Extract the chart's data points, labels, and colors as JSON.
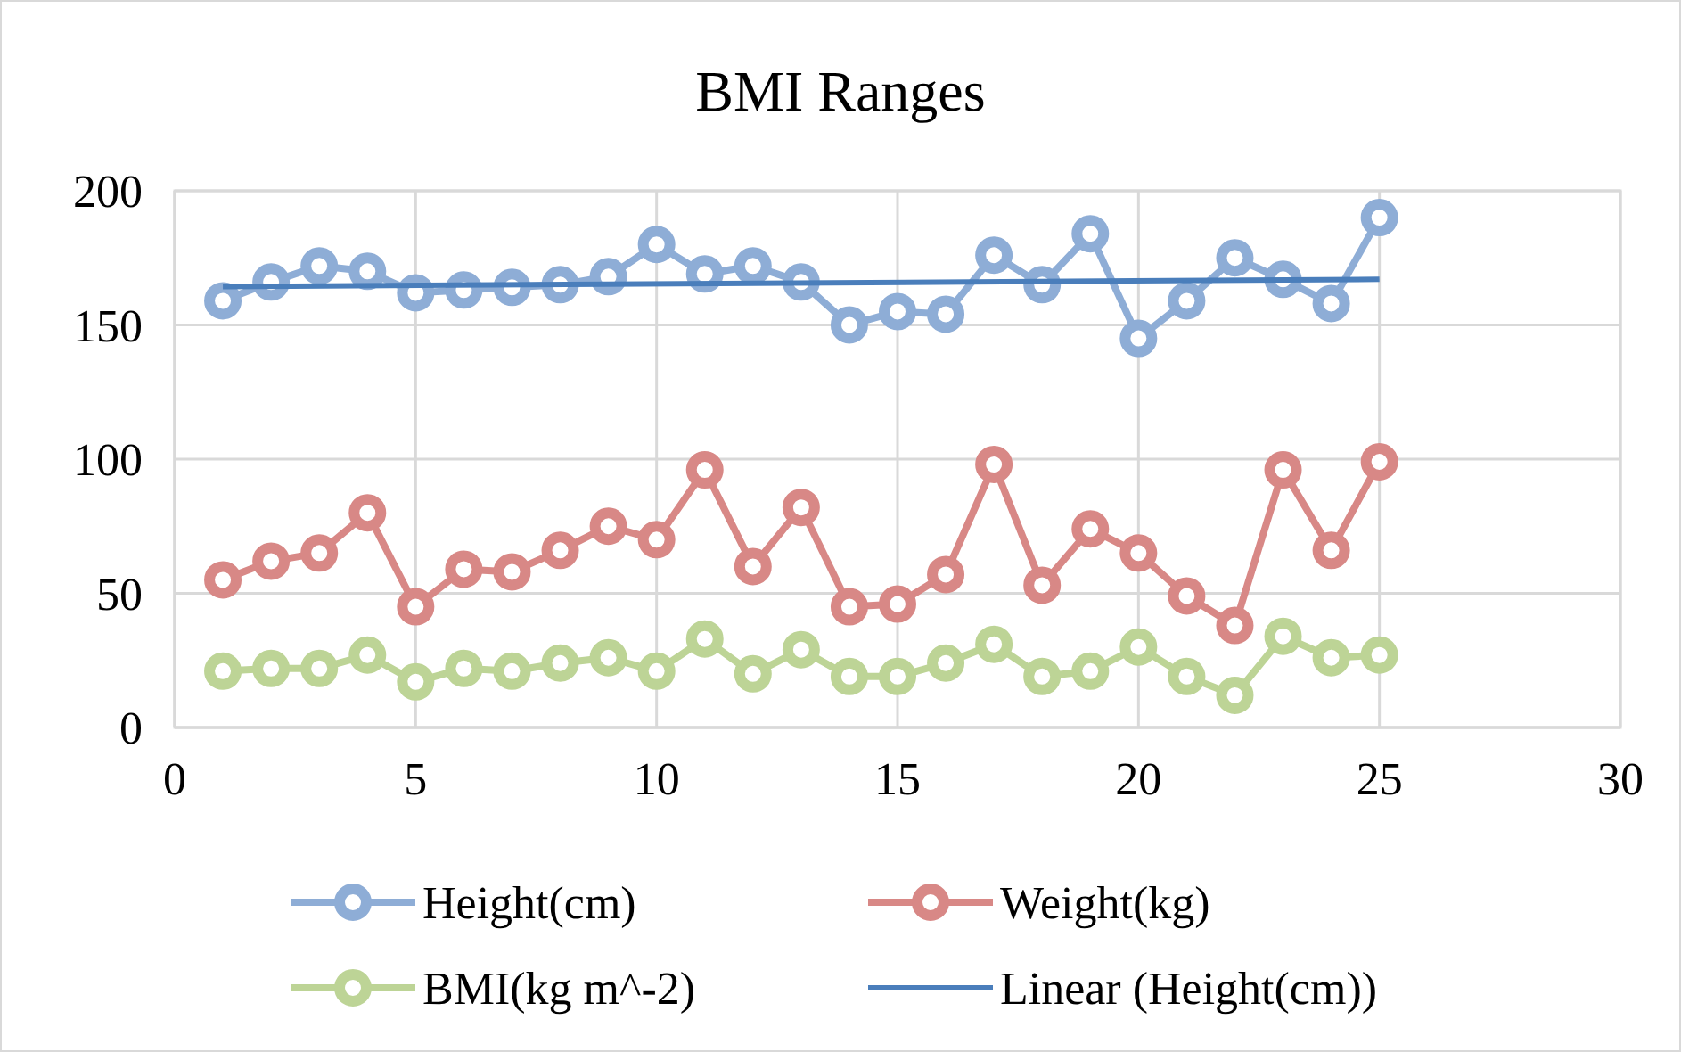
{
  "chart_data": {
    "type": "line",
    "title": "BMI Ranges",
    "x": [
      1,
      2,
      3,
      4,
      5,
      6,
      7,
      8,
      9,
      10,
      11,
      12,
      13,
      14,
      15,
      16,
      17,
      18,
      19,
      20,
      21,
      22,
      23,
      24,
      25
    ],
    "series": [
      {
        "name": "Height(cm)",
        "color": "#8eadd6",
        "marker": "circle",
        "values": [
          159,
          166,
          172,
          170,
          162,
          163,
          164,
          165,
          168,
          180,
          169,
          172,
          166,
          150,
          155,
          154,
          176,
          165,
          184,
          145,
          159,
          175,
          167,
          158,
          190
        ]
      },
      {
        "name": "Weight(kg)",
        "color": "#d88886",
        "marker": "circle",
        "values": [
          55,
          62,
          65,
          80,
          45,
          59,
          58,
          66,
          75,
          70,
          96,
          60,
          82,
          45,
          46,
          57,
          98,
          53,
          74,
          65,
          49,
          38,
          96,
          66,
          99
        ]
      },
      {
        "name": "BMI(kg m^-2)",
        "color": "#bdd496",
        "marker": "circle",
        "values": [
          21,
          22,
          22,
          27,
          17,
          22,
          21,
          24,
          26,
          21,
          33,
          20,
          29,
          19,
          19,
          24,
          31,
          19,
          21,
          30,
          19,
          12,
          34,
          26,
          27
        ]
      },
      {
        "name": "Linear (Height(cm))",
        "color": "#4a7ebb",
        "marker": "none",
        "x": [
          1,
          25
        ],
        "values": [
          164.3,
          167.0
        ]
      }
    ],
    "xlim": [
      0,
      30
    ],
    "xticks": [
      0,
      5,
      10,
      15,
      20,
      25,
      30
    ],
    "ylim": [
      0,
      200
    ],
    "yticks": [
      0,
      50,
      100,
      150,
      200
    ],
    "grid": true,
    "legend": "bottom"
  }
}
